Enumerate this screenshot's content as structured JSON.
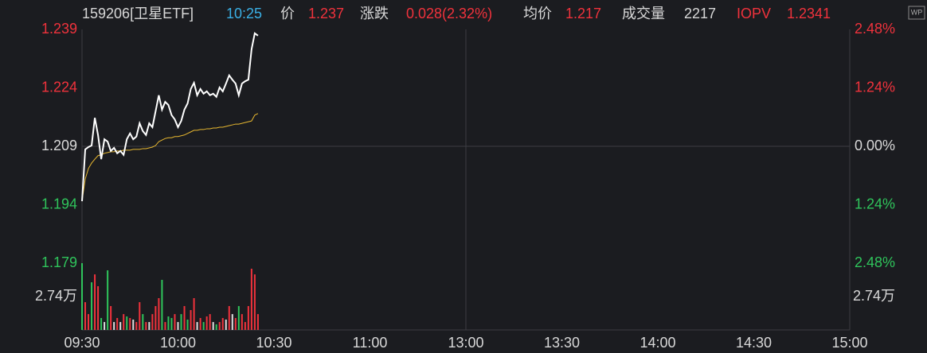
{
  "chart_data": {
    "type": "line",
    "header": {
      "code": "159206[卫星ETF]",
      "time": "10:25",
      "price_label": "价",
      "price": "1.237",
      "change_label": "涨跌",
      "change": "0.028(2.32%)",
      "avg_label": "均价",
      "avg": "1.217",
      "volume_label": "成交量",
      "volume": "2217",
      "iopv_label": "IOPV",
      "iopv": "1.2341",
      "logo": "WP"
    },
    "xlim": [
      0,
      240
    ],
    "xticks": [
      {
        "value": 0,
        "label": "09:30"
      },
      {
        "value": 30,
        "label": "10:00"
      },
      {
        "value": 60,
        "label": "10:30"
      },
      {
        "value": 90,
        "label": "11:00"
      },
      {
        "value": 120,
        "label": "13:00"
      },
      {
        "value": 150,
        "label": "13:30"
      },
      {
        "value": 180,
        "label": "14:00"
      },
      {
        "value": 210,
        "label": "14:30"
      },
      {
        "value": 240,
        "label": "15:00"
      }
    ],
    "ylim": [
      1.179,
      1.239
    ],
    "yticks": [
      1.239,
      1.224,
      1.209,
      1.194,
      1.179
    ],
    "ytick_colors": [
      "#f0323c",
      "#f0323c",
      "#d8d8d8",
      "#2fc45b",
      "#2fc45b"
    ],
    "y2lim": [
      -2.48,
      2.48
    ],
    "y2ticks": [
      {
        "value": 2.48,
        "label": "2.48%"
      },
      {
        "value": 1.24,
        "label": "1.24%"
      },
      {
        "value": 0,
        "label": "0.00%"
      },
      {
        "value": -1.24,
        "label": "1.24%"
      },
      {
        "value": -2.48,
        "label": "2.48%"
      }
    ],
    "grid_color": "#3c3d42",
    "x": [
      0,
      1,
      2,
      3,
      4,
      5,
      6,
      7,
      8,
      9,
      10,
      11,
      12,
      13,
      14,
      15,
      16,
      17,
      18,
      19,
      20,
      21,
      22,
      23,
      24,
      25,
      26,
      27,
      28,
      29,
      30,
      31,
      32,
      33,
      34,
      35,
      36,
      37,
      38,
      39,
      40,
      41,
      42,
      43,
      44,
      45,
      46,
      47,
      48,
      49,
      50,
      51,
      52,
      53,
      54,
      55
    ],
    "series": [
      {
        "color": "#ffffff",
        "values": [
          1.1949,
          1.2082,
          1.2088,
          1.2092,
          1.2163,
          1.2119,
          1.2057,
          1.2108,
          1.2102,
          1.2078,
          1.2086,
          1.2072,
          1.2078,
          1.2068,
          1.2108,
          1.2123,
          1.2108,
          1.2115,
          1.2149,
          1.2129,
          1.2119,
          1.2149,
          1.2139,
          1.218,
          1.2221,
          1.2184,
          1.2204,
          1.2196,
          1.217,
          1.2159,
          1.2139,
          1.2155,
          1.2184,
          1.22,
          1.2237,
          1.2253,
          1.2221,
          1.2237,
          1.2225,
          1.2231,
          1.2221,
          1.2225,
          1.2217,
          1.2241,
          1.2231,
          1.2251,
          1.2272,
          1.2261,
          1.2251,
          1.2221,
          1.2251,
          1.2257,
          1.2261,
          1.2339,
          1.238,
          1.2374
        ]
      },
      {
        "color": "#e8b830",
        "values": [
          1.1949,
          1.2006,
          1.2033,
          1.2047,
          1.2057,
          1.2066,
          1.2068,
          1.2072,
          1.2074,
          1.2076,
          1.2076,
          1.2078,
          1.2078,
          1.208,
          1.208,
          1.208,
          1.2082,
          1.2082,
          1.2082,
          1.2084,
          1.2084,
          1.2086,
          1.2088,
          1.2092,
          1.2102,
          1.2106,
          1.211,
          1.2112,
          1.2112,
          1.2115,
          1.2115,
          1.2117,
          1.2119,
          1.2123,
          1.2127,
          1.2131,
          1.2131,
          1.2133,
          1.2133,
          1.2135,
          1.2135,
          1.2137,
          1.2137,
          1.2139,
          1.2139,
          1.2141,
          1.2143,
          1.2145,
          1.2147,
          1.2147,
          1.2149,
          1.2151,
          1.2153,
          1.2155,
          1.217,
          1.2174
        ]
      }
    ],
    "volume": {
      "lim": [
        0,
        54800
      ],
      "ticks": [
        {
          "value": 27400,
          "label": "2.74万"
        }
      ],
      "values": [
        54800,
        22800,
        13000,
        39100,
        45600,
        35900,
        9800,
        6500,
        48900,
        19600,
        6500,
        9800,
        6500,
        13000,
        11100,
        9800,
        8500,
        6500,
        22800,
        13000,
        6500,
        6500,
        13000,
        19600,
        26100,
        41100,
        6500,
        11100,
        9800,
        13000,
        6500,
        13000,
        19600,
        8500,
        16300,
        26100,
        6500,
        9800,
        6500,
        11100,
        13000,
        6500,
        4600,
        6500,
        9800,
        8500,
        19600,
        13000,
        9800,
        19600,
        13000,
        6500,
        19600,
        50200,
        45600,
        13000
      ],
      "colors": [
        "#2fc45b",
        "#f0323c",
        "#f0323c",
        "#2fc45b",
        "#f0323c",
        "#f0323c",
        "#2fc45b",
        "#e0e0e0",
        "#2fc45b",
        "#f0323c",
        "#e0e0e0",
        "#f0323c",
        "#e0e0e0",
        "#f0323c",
        "#2fc45b",
        "#f0323c",
        "#e0e0e0",
        "#f0323c",
        "#f0323c",
        "#2fc45b",
        "#f0323c",
        "#e0e0e0",
        "#f0323c",
        "#f0323c",
        "#f0323c",
        "#2fc45b",
        "#f0323c",
        "#2fc45b",
        "#2fc45b",
        "#f0323c",
        "#e0e0e0",
        "#2fc45b",
        "#f0323c",
        "#2fc45b",
        "#f0323c",
        "#f0323c",
        "#e0e0e0",
        "#f0323c",
        "#2fc45b",
        "#f0323c",
        "#f0323c",
        "#e0e0e0",
        "#2fc45b",
        "#f0323c",
        "#f0323c",
        "#e0e0e0",
        "#f0323c",
        "#e0e0e0",
        "#f0323c",
        "#2fc45b",
        "#f0323c",
        "#f0323c",
        "#f0323c",
        "#f0323c",
        "#f0323c",
        "#f0323c"
      ]
    }
  }
}
